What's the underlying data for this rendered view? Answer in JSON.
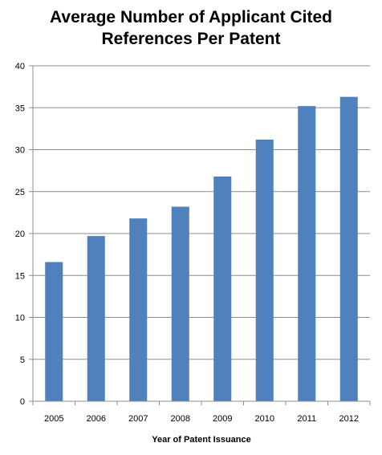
{
  "chart_data": {
    "type": "bar",
    "title_lines": [
      "Average Number of Applicant Cited",
      "References Per Patent"
    ],
    "xlabel": "Year of Patent Issuance",
    "ylabel": "",
    "categories": [
      "2005",
      "2006",
      "2007",
      "2008",
      "2009",
      "2010",
      "2011",
      "2012"
    ],
    "values": [
      16.6,
      19.7,
      21.8,
      23.2,
      26.8,
      31.2,
      35.2,
      36.3
    ],
    "ylim": [
      0,
      40
    ],
    "yticks": [
      "0",
      "5",
      "10",
      "15",
      "20",
      "25",
      "30",
      "35",
      "40"
    ],
    "grid": true,
    "legend": "none",
    "bar_color": "#4f81bd"
  }
}
